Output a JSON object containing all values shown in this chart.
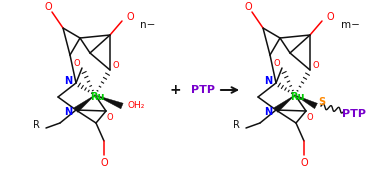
{
  "bg_color": "#ffffff",
  "ru_color": "#00cc00",
  "n_color": "#0000ff",
  "o_color": "#ff0000",
  "s_color": "#ff8800",
  "ptp_color": "#7700cc",
  "bond_color": "#111111",
  "n_minus": "n−",
  "m_minus": "m−",
  "ptp_label": "PTP",
  "oh2_label": "OH₂"
}
